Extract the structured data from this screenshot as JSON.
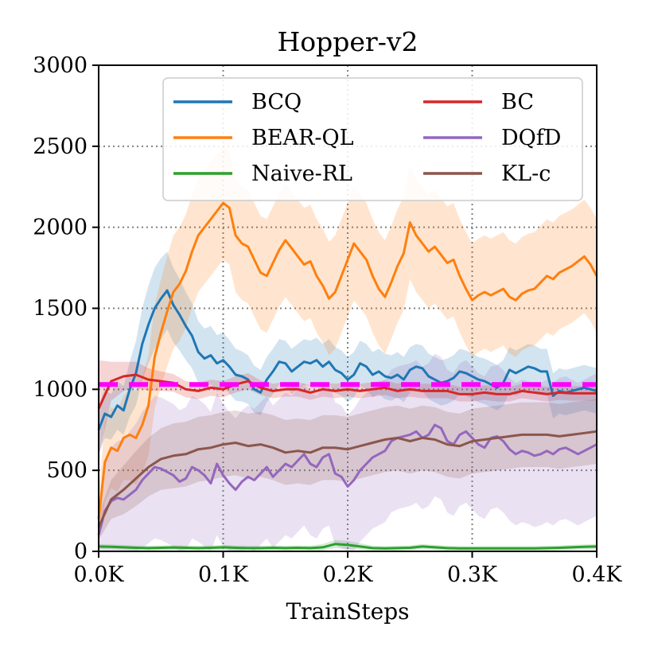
{
  "chart_data": {
    "type": "line",
    "title": "Hopper-v2",
    "xlabel": "TrainSteps",
    "ylabel": "",
    "xlim": [
      0,
      0.4
    ],
    "ylim": [
      0,
      3000
    ],
    "x_ticks": [
      0,
      0.1,
      0.2,
      0.3,
      0.4
    ],
    "x_tick_labels": [
      "0.0K",
      "0.1K",
      "0.2K",
      "0.3K",
      "0.4K"
    ],
    "y_ticks": [
      0,
      500,
      1000,
      1500,
      2000,
      2500,
      3000
    ],
    "y_tick_labels": [
      "0",
      "500",
      "1000",
      "1500",
      "2000",
      "2500",
      "3000"
    ],
    "grid": true,
    "legend_position": "top-right",
    "reference_line": {
      "value": 1030,
      "color": "#ff00ff",
      "style": "dashed"
    },
    "series": [
      {
        "name": "BCQ",
        "color": "#1f77b4",
        "x": [
          0.0,
          0.005,
          0.01,
          0.015,
          0.02,
          0.025,
          0.03,
          0.035,
          0.04,
          0.045,
          0.05,
          0.055,
          0.06,
          0.065,
          0.07,
          0.075,
          0.08,
          0.085,
          0.09,
          0.095,
          0.1,
          0.105,
          0.11,
          0.115,
          0.12,
          0.125,
          0.13,
          0.135,
          0.14,
          0.145,
          0.15,
          0.155,
          0.16,
          0.165,
          0.17,
          0.175,
          0.18,
          0.185,
          0.19,
          0.195,
          0.2,
          0.205,
          0.21,
          0.215,
          0.22,
          0.225,
          0.23,
          0.235,
          0.24,
          0.245,
          0.25,
          0.255,
          0.26,
          0.265,
          0.27,
          0.275,
          0.28,
          0.285,
          0.29,
          0.295,
          0.3,
          0.305,
          0.31,
          0.315,
          0.32,
          0.325,
          0.33,
          0.335,
          0.34,
          0.345,
          0.35,
          0.355,
          0.36,
          0.365,
          0.37,
          0.375,
          0.38,
          0.385,
          0.39,
          0.395,
          0.4
        ],
        "values": [
          750,
          850,
          830,
          900,
          870,
          1000,
          1100,
          1280,
          1400,
          1500,
          1560,
          1610,
          1520,
          1460,
          1390,
          1330,
          1230,
          1190,
          1210,
          1160,
          1180,
          1140,
          1090,
          1080,
          1060,
          1000,
          980,
          1060,
          1110,
          1170,
          1160,
          1110,
          1140,
          1170,
          1160,
          1180,
          1140,
          1170,
          1120,
          1100,
          1060,
          1090,
          1160,
          1140,
          1090,
          1110,
          1080,
          1070,
          1090,
          1060,
          1120,
          1140,
          1130,
          1080,
          1060,
          1040,
          1050,
          1070,
          1110,
          1100,
          1080,
          1060,
          1050,
          1030,
          1010,
          1040,
          1120,
          1100,
          1120,
          1140,
          1130,
          1110,
          1110,
          960,
          990,
          980,
          990,
          1000,
          1010,
          1000,
          990
        ],
        "band_width": [
          150,
          150,
          140,
          150,
          150,
          170,
          200,
          220,
          240,
          250,
          250,
          240,
          230,
          220,
          210,
          200,
          190,
          185,
          180,
          175,
          170,
          165,
          160,
          155,
          150,
          145,
          140,
          140,
          140,
          140,
          140,
          140,
          140,
          140,
          140,
          140,
          140,
          140,
          140,
          140,
          140,
          140,
          140,
          140,
          140,
          140,
          140,
          140,
          140,
          140,
          140,
          140,
          140,
          140,
          140,
          140,
          140,
          140,
          140,
          140,
          140,
          140,
          140,
          140,
          140,
          140,
          140,
          140,
          140,
          140,
          140,
          140,
          140,
          140,
          140,
          140,
          140,
          140,
          140,
          140,
          140
        ]
      },
      {
        "name": "BEAR-QL",
        "color": "#ff7f0e",
        "x": [
          0.0,
          0.005,
          0.01,
          0.015,
          0.02,
          0.025,
          0.03,
          0.035,
          0.04,
          0.045,
          0.05,
          0.055,
          0.06,
          0.065,
          0.07,
          0.075,
          0.08,
          0.085,
          0.09,
          0.095,
          0.1,
          0.105,
          0.11,
          0.115,
          0.12,
          0.125,
          0.13,
          0.135,
          0.14,
          0.145,
          0.15,
          0.155,
          0.16,
          0.165,
          0.17,
          0.175,
          0.18,
          0.185,
          0.19,
          0.195,
          0.2,
          0.205,
          0.21,
          0.215,
          0.22,
          0.225,
          0.23,
          0.235,
          0.24,
          0.245,
          0.25,
          0.255,
          0.26,
          0.265,
          0.27,
          0.275,
          0.28,
          0.285,
          0.29,
          0.295,
          0.3,
          0.305,
          0.31,
          0.315,
          0.32,
          0.325,
          0.33,
          0.335,
          0.34,
          0.345,
          0.35,
          0.355,
          0.36,
          0.365,
          0.37,
          0.375,
          0.38,
          0.385,
          0.39,
          0.395,
          0.4
        ],
        "values": [
          200,
          550,
          640,
          620,
          700,
          720,
          700,
          780,
          900,
          1200,
          1350,
          1480,
          1600,
          1650,
          1730,
          1850,
          1950,
          2000,
          2050,
          2100,
          2150,
          2120,
          1950,
          1900,
          1880,
          1800,
          1720,
          1700,
          1780,
          1860,
          1920,
          1870,
          1820,
          1770,
          1790,
          1700,
          1640,
          1560,
          1600,
          1700,
          1800,
          1900,
          1850,
          1800,
          1700,
          1620,
          1570,
          1660,
          1760,
          1840,
          2030,
          1950,
          1900,
          1850,
          1880,
          1830,
          1780,
          1800,
          1700,
          1620,
          1550,
          1580,
          1600,
          1580,
          1600,
          1620,
          1570,
          1550,
          1590,
          1610,
          1620,
          1660,
          1700,
          1680,
          1720,
          1740,
          1760,
          1790,
          1820,
          1770,
          1700
        ],
        "band_width": [
          150,
          250,
          250,
          250,
          260,
          280,
          290,
          300,
          310,
          320,
          330,
          340,
          350,
          350,
          350,
          350,
          350,
          350,
          350,
          350,
          350,
          350,
          350,
          350,
          350,
          350,
          350,
          350,
          350,
          350,
          350,
          350,
          350,
          350,
          350,
          350,
          350,
          350,
          350,
          350,
          350,
          350,
          350,
          350,
          350,
          350,
          350,
          350,
          350,
          350,
          350,
          350,
          350,
          350,
          350,
          350,
          350,
          350,
          350,
          350,
          350,
          350,
          350,
          350,
          350,
          350,
          350,
          350,
          350,
          350,
          350,
          350,
          350,
          350,
          350,
          350,
          350,
          350,
          350,
          350,
          350
        ]
      },
      {
        "name": "Naive-RL",
        "color": "#2ca02c",
        "x": [
          0.0,
          0.01,
          0.02,
          0.03,
          0.04,
          0.05,
          0.06,
          0.07,
          0.08,
          0.09,
          0.1,
          0.11,
          0.12,
          0.13,
          0.14,
          0.15,
          0.16,
          0.17,
          0.18,
          0.19,
          0.2,
          0.21,
          0.22,
          0.23,
          0.24,
          0.25,
          0.26,
          0.27,
          0.28,
          0.29,
          0.3,
          0.31,
          0.32,
          0.33,
          0.34,
          0.35,
          0.36,
          0.37,
          0.38,
          0.39,
          0.4
        ],
        "values": [
          30,
          28,
          25,
          22,
          20,
          22,
          24,
          22,
          20,
          22,
          25,
          22,
          20,
          20,
          22,
          20,
          22,
          20,
          25,
          45,
          40,
          30,
          20,
          18,
          20,
          22,
          30,
          25,
          20,
          18,
          18,
          18,
          18,
          18,
          18,
          18,
          20,
          22,
          25,
          28,
          30
        ],
        "band_width": [
          15,
          15,
          15,
          15,
          15,
          15,
          15,
          15,
          15,
          15,
          15,
          15,
          15,
          15,
          15,
          15,
          15,
          15,
          20,
          25,
          25,
          20,
          15,
          15,
          15,
          15,
          15,
          15,
          15,
          15,
          15,
          15,
          15,
          15,
          15,
          15,
          15,
          15,
          15,
          15,
          15
        ]
      },
      {
        "name": "BC",
        "color": "#d62728",
        "x": [
          0.0,
          0.01,
          0.02,
          0.03,
          0.04,
          0.05,
          0.06,
          0.07,
          0.08,
          0.09,
          0.1,
          0.11,
          0.12,
          0.13,
          0.14,
          0.15,
          0.16,
          0.17,
          0.18,
          0.19,
          0.2,
          0.21,
          0.22,
          0.23,
          0.24,
          0.25,
          0.26,
          0.27,
          0.28,
          0.29,
          0.3,
          0.31,
          0.32,
          0.33,
          0.34,
          0.35,
          0.36,
          0.37,
          0.38,
          0.39,
          0.4
        ],
        "values": [
          880,
          1050,
          1080,
          1090,
          1060,
          1050,
          1040,
          1000,
          990,
          1010,
          1000,
          1030,
          1050,
          1010,
          990,
          1000,
          1000,
          980,
          1000,
          990,
          1000,
          990,
          1000,
          1010,
          990,
          1000,
          990,
          990,
          990,
          970,
          970,
          980,
          970,
          970,
          990,
          980,
          970,
          980,
          975,
          975,
          975
        ],
        "band_width": [
          300,
          120,
          90,
          80,
          70,
          60,
          55,
          50,
          50,
          50,
          50,
          50,
          50,
          45,
          45,
          45,
          45,
          45,
          45,
          45,
          45,
          45,
          45,
          45,
          45,
          45,
          45,
          45,
          45,
          45,
          45,
          45,
          45,
          45,
          45,
          45,
          45,
          45,
          45,
          45,
          45
        ]
      },
      {
        "name": "DQfD",
        "color": "#9467bd",
        "x": [
          0.0,
          0.005,
          0.01,
          0.015,
          0.02,
          0.025,
          0.03,
          0.035,
          0.04,
          0.045,
          0.05,
          0.055,
          0.06,
          0.065,
          0.07,
          0.075,
          0.08,
          0.085,
          0.09,
          0.095,
          0.1,
          0.105,
          0.11,
          0.115,
          0.12,
          0.125,
          0.13,
          0.135,
          0.14,
          0.145,
          0.15,
          0.155,
          0.16,
          0.165,
          0.17,
          0.175,
          0.18,
          0.185,
          0.19,
          0.195,
          0.2,
          0.205,
          0.21,
          0.215,
          0.22,
          0.225,
          0.23,
          0.235,
          0.24,
          0.245,
          0.25,
          0.255,
          0.26,
          0.265,
          0.27,
          0.275,
          0.28,
          0.285,
          0.29,
          0.295,
          0.3,
          0.305,
          0.31,
          0.315,
          0.32,
          0.325,
          0.33,
          0.335,
          0.34,
          0.345,
          0.35,
          0.355,
          0.36,
          0.365,
          0.37,
          0.375,
          0.38,
          0.385,
          0.39,
          0.395,
          0.4
        ],
        "values": [
          100,
          250,
          310,
          330,
          320,
          350,
          380,
          440,
          480,
          520,
          510,
          490,
          470,
          430,
          450,
          520,
          500,
          470,
          420,
          540,
          470,
          420,
          380,
          430,
          460,
          440,
          480,
          520,
          460,
          500,
          540,
          520,
          560,
          600,
          540,
          520,
          580,
          600,
          480,
          460,
          400,
          440,
          500,
          540,
          580,
          600,
          620,
          680,
          700,
          710,
          720,
          740,
          700,
          720,
          780,
          760,
          680,
          660,
          720,
          740,
          700,
          660,
          640,
          700,
          710,
          680,
          630,
          600,
          620,
          610,
          590,
          600,
          620,
          600,
          630,
          640,
          620,
          600,
          620,
          640,
          660
        ],
        "band_width": [
          150,
          300,
          330,
          350,
          370,
          390,
          410,
          420,
          430,
          440,
          440,
          440,
          440,
          440,
          440,
          440,
          440,
          440,
          440,
          440,
          440,
          440,
          440,
          440,
          440,
          440,
          440,
          440,
          440,
          440,
          440,
          440,
          440,
          440,
          440,
          440,
          440,
          440,
          440,
          440,
          440,
          440,
          440,
          440,
          440,
          440,
          440,
          440,
          440,
          440,
          440,
          440,
          440,
          440,
          440,
          440,
          440,
          440,
          440,
          440,
          440,
          440,
          440,
          440,
          440,
          440,
          440,
          440,
          440,
          440,
          440,
          440,
          440,
          440,
          440,
          440,
          440,
          440,
          440,
          440,
          440
        ]
      },
      {
        "name": "KL-c",
        "color": "#8c564b",
        "x": [
          0.0,
          0.01,
          0.02,
          0.03,
          0.04,
          0.05,
          0.06,
          0.07,
          0.08,
          0.09,
          0.1,
          0.11,
          0.12,
          0.13,
          0.14,
          0.15,
          0.16,
          0.17,
          0.18,
          0.19,
          0.2,
          0.21,
          0.22,
          0.23,
          0.24,
          0.25,
          0.26,
          0.27,
          0.28,
          0.29,
          0.3,
          0.31,
          0.32,
          0.33,
          0.34,
          0.35,
          0.36,
          0.37,
          0.38,
          0.39,
          0.4
        ],
        "values": [
          150,
          320,
          380,
          450,
          520,
          570,
          590,
          600,
          630,
          640,
          660,
          670,
          650,
          660,
          640,
          610,
          620,
          610,
          640,
          640,
          630,
          650,
          670,
          690,
          700,
          680,
          700,
          690,
          660,
          650,
          680,
          690,
          700,
          710,
          720,
          720,
          720,
          710,
          720,
          730,
          740
        ],
        "band_width": [
          80,
          120,
          150,
          170,
          180,
          190,
          200,
          200,
          200,
          200,
          200,
          200,
          200,
          200,
          200,
          200,
          200,
          200,
          200,
          200,
          200,
          200,
          200,
          200,
          200,
          200,
          200,
          200,
          200,
          200,
          200,
          200,
          200,
          200,
          200,
          200,
          200,
          200,
          200,
          200,
          200
        ]
      }
    ]
  }
}
